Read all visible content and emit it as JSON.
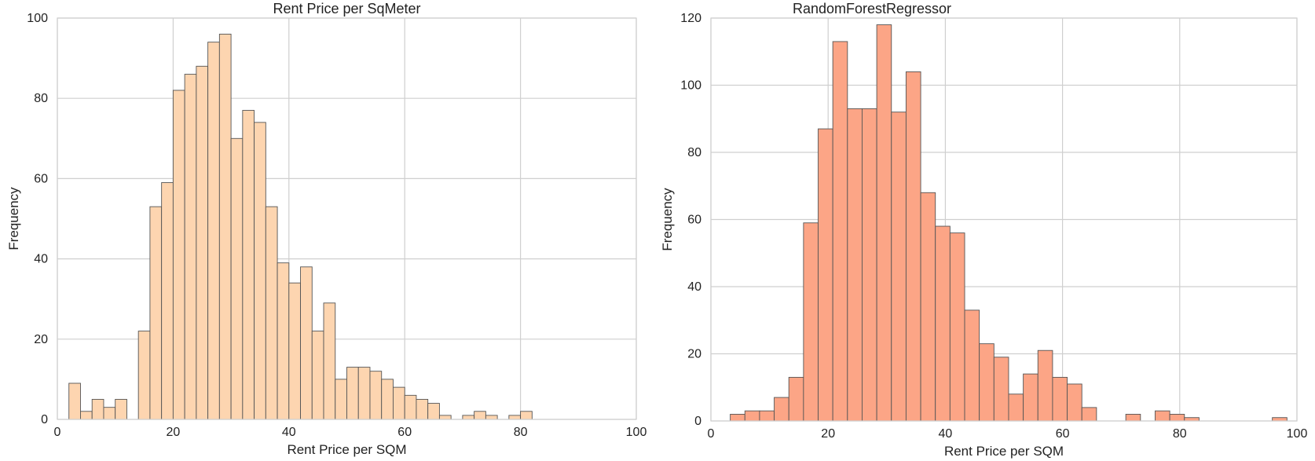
{
  "chart_data": [
    {
      "type": "bar",
      "title": "Rent Price per SqMeter",
      "xlabel": "Rent Price per SQM",
      "ylabel": "Frequency",
      "xlim": [
        0,
        100
      ],
      "ylim": [
        0,
        100
      ],
      "xticks": [
        0,
        20,
        40,
        60,
        80,
        100
      ],
      "yticks": [
        0,
        20,
        40,
        60,
        80,
        100
      ],
      "grid": true,
      "bar_color": "#fdd5b0",
      "bin_edges": [
        2,
        4,
        6,
        8,
        10,
        12,
        14,
        16,
        18,
        20,
        22,
        24,
        26,
        28,
        30,
        32,
        34,
        36,
        38,
        40,
        42,
        44,
        46,
        48,
        50,
        52,
        54,
        56,
        58,
        60,
        62,
        64,
        66,
        68,
        70,
        72,
        74,
        76,
        78,
        80,
        82,
        84
      ],
      "values": [
        9,
        2,
        5,
        3,
        5,
        0,
        22,
        53,
        59,
        82,
        86,
        88,
        94,
        96,
        70,
        77,
        74,
        53,
        39,
        34,
        38,
        22,
        29,
        10,
        13,
        13,
        12,
        10,
        8,
        6,
        5,
        4,
        1,
        0,
        1,
        2,
        1,
        0,
        1,
        2,
        0
      ]
    },
    {
      "type": "bar",
      "title": "RandomForestRegressor",
      "xlabel": "Rent Price per SQM",
      "ylabel": "Frequency",
      "xlim": [
        0,
        100
      ],
      "ylim": [
        0,
        120
      ],
      "xticks": [
        0,
        20,
        40,
        60,
        80,
        100
      ],
      "yticks": [
        0,
        20,
        40,
        60,
        80,
        100,
        120
      ],
      "grid": true,
      "bar_color": "#fca586",
      "bin_edges": [
        3.3,
        5.8,
        8.3,
        10.8,
        13.3,
        15.8,
        18.3,
        20.8,
        23.3,
        25.8,
        28.3,
        30.8,
        33.3,
        35.8,
        38.3,
        40.8,
        43.3,
        45.8,
        48.3,
        50.8,
        53.3,
        55.8,
        58.3,
        60.8,
        63.3,
        65.8,
        68.3,
        70.8,
        73.3,
        75.8,
        78.3,
        80.8,
        83.3,
        85.8,
        88.3,
        90.8,
        93.3,
        95.8,
        98.3
      ],
      "values": [
        2,
        3,
        3,
        7,
        13,
        59,
        87,
        113,
        93,
        93,
        118,
        92,
        104,
        68,
        58,
        56,
        33,
        23,
        19,
        8,
        14,
        21,
        13,
        11,
        4,
        0,
        0,
        2,
        0,
        3,
        2,
        1,
        0,
        0,
        0,
        0,
        0,
        1
      ]
    }
  ]
}
